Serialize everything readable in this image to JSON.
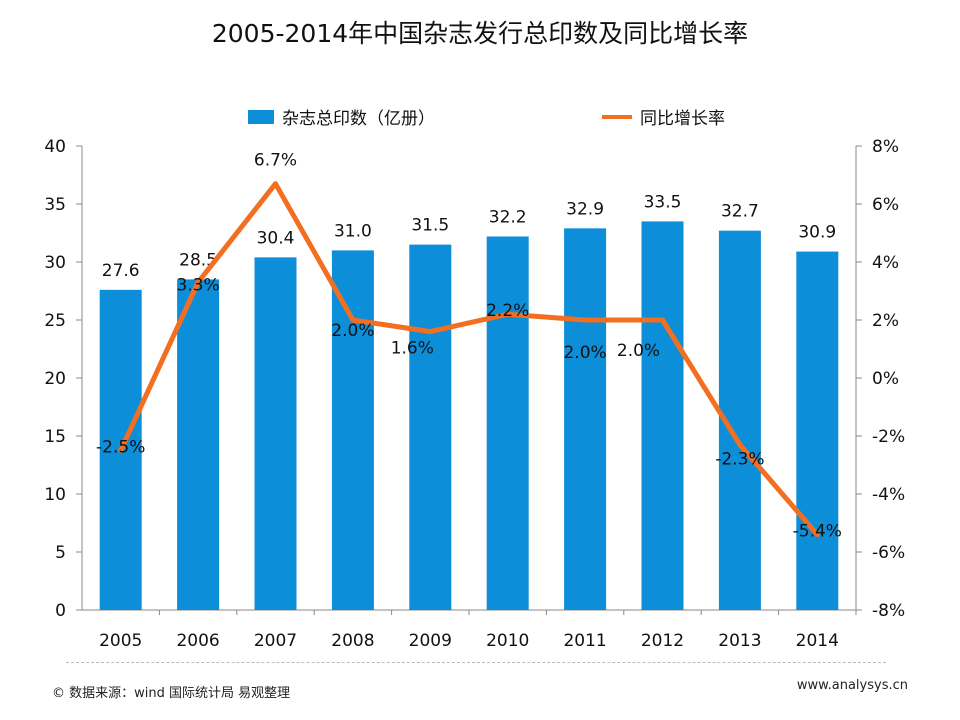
{
  "colors": {
    "bar": "#0d8ed9",
    "line": "#f26f21",
    "axis": "#888888",
    "text": "#111111"
  },
  "chart_data": {
    "type": "bar",
    "title": "2005-2014年中国杂志发行总印数及同比增长率",
    "categories": [
      "2005",
      "2006",
      "2007",
      "2008",
      "2009",
      "2010",
      "2011",
      "2012",
      "2013",
      "2014"
    ],
    "series": [
      {
        "name": "杂志总印数（亿册）",
        "type": "bar",
        "axis": "left",
        "values": [
          27.6,
          28.5,
          30.4,
          31.0,
          31.5,
          32.2,
          32.9,
          33.5,
          32.7,
          30.9
        ],
        "labels": [
          "27.6",
          "28.5",
          "30.4",
          "31.0",
          "31.5",
          "32.2",
          "32.9",
          "33.5",
          "32.7",
          "30.9"
        ]
      },
      {
        "name": "同比增长率",
        "type": "line",
        "axis": "right",
        "values": [
          -2.5,
          3.3,
          6.7,
          2.0,
          1.6,
          2.2,
          2.0,
          2.0,
          -2.3,
          -5.4
        ],
        "labels": [
          "-2.5%",
          "3.3%",
          "6.7%",
          "2.0%",
          "1.6%",
          "2.2%",
          "2.0%",
          "2.0%",
          "-2.3%",
          "-5.4%"
        ]
      }
    ],
    "left_axis": {
      "min": 0,
      "max": 40,
      "ticks": [
        "0",
        "5",
        "10",
        "15",
        "20",
        "25",
        "30",
        "35",
        "40"
      ]
    },
    "right_axis": {
      "min": -8,
      "max": 8,
      "ticks": [
        "-8%",
        "-6%",
        "-4%",
        "-2%",
        "0%",
        "2%",
        "4%",
        "6%",
        "8%"
      ]
    },
    "legend_position": "top"
  },
  "footer": {
    "source": "© 数据来源：wind 国际统计局 易观整理",
    "url": "www.analysys.cn"
  }
}
